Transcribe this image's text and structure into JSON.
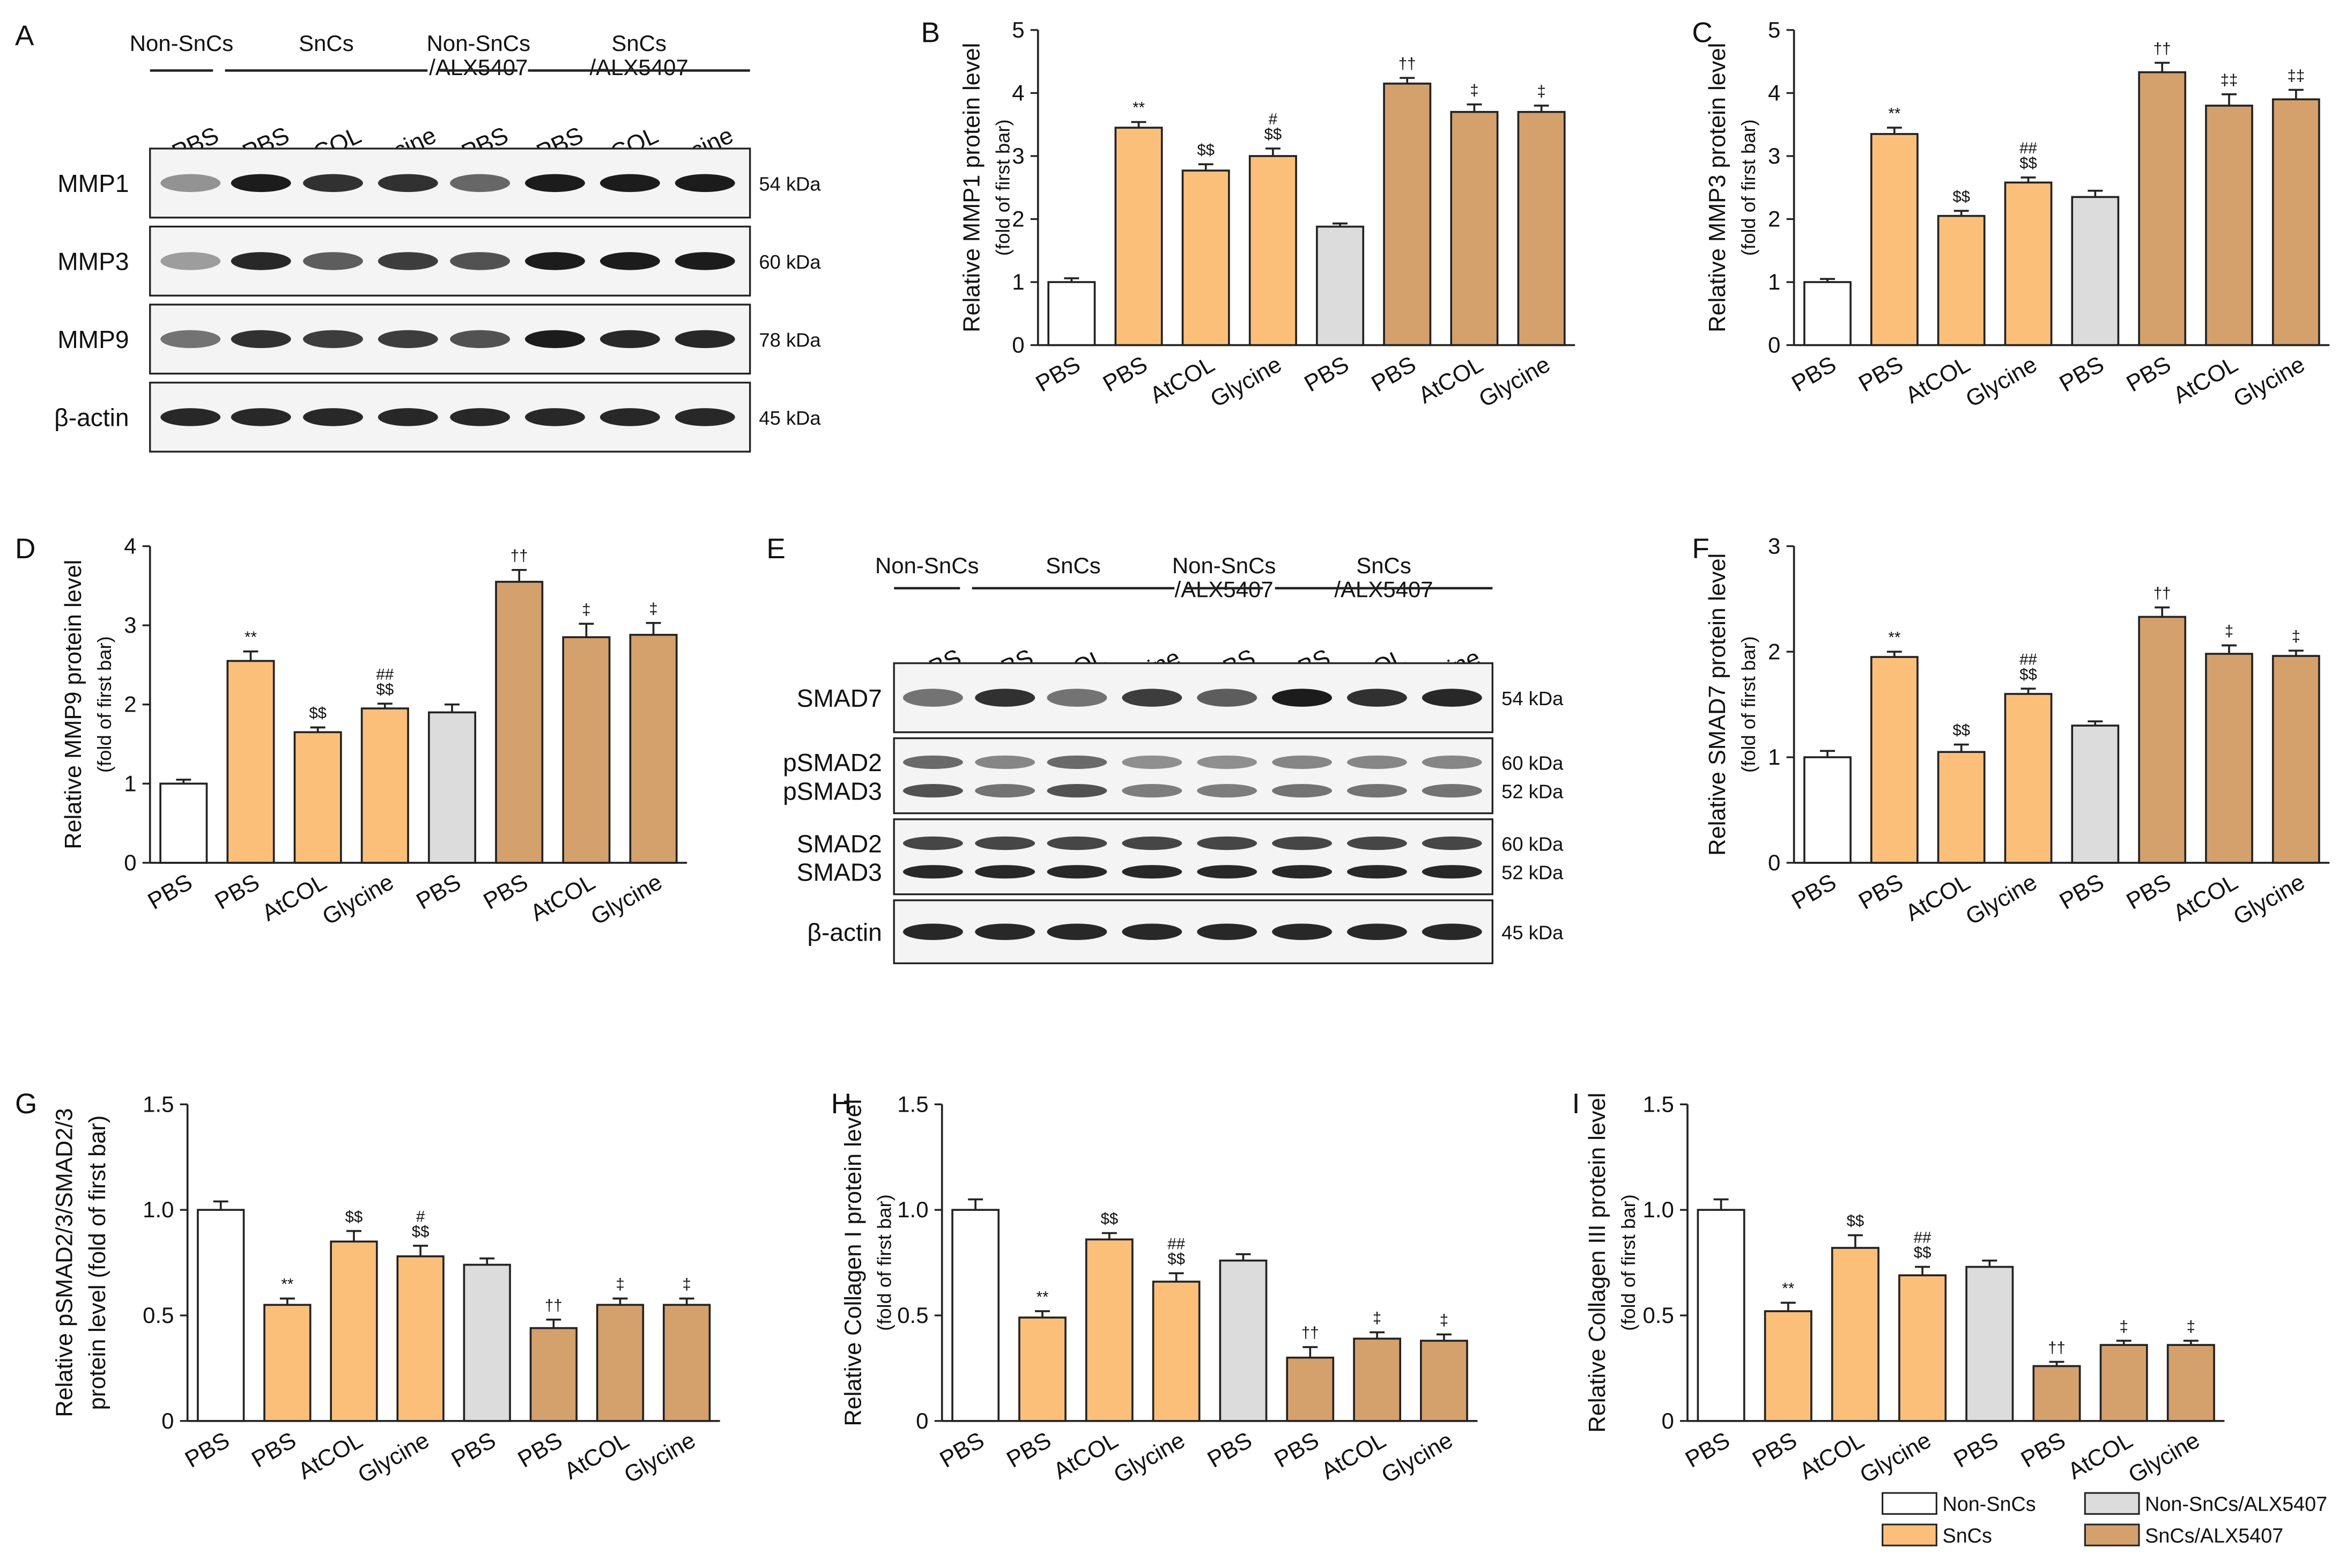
{
  "colors": {
    "non_sncs": "#ffffff",
    "sncs": "#fcbf7a",
    "non_sncs_alx": "#dcdcdc",
    "sncs_alx": "#d4a06c",
    "blot_bg": "#f4f4f4",
    "band": "#1c1c1c"
  },
  "labels": [
    "PBS",
    "PBS",
    "AtCOL",
    "Glycine",
    "PBS",
    "PBS",
    "AtCOL",
    "Glycine"
  ],
  "legend": {
    "items": [
      {
        "label": "Non-SnCs",
        "color": "#ffffff"
      },
      {
        "label": "Non-SnCs/ALX5407",
        "color": "#dcdcdc"
      },
      {
        "label": "SnCs",
        "color": "#fcbf7a"
      },
      {
        "label": "SnCs/ALX5407",
        "color": "#d4a06c"
      }
    ]
  },
  "blot_a": {
    "panel": "A",
    "groups": [
      {
        "line1": "Non-SnCs",
        "line2": ""
      },
      {
        "line1": "SnCs",
        "line2": ""
      },
      {
        "line1": "Non-SnCs",
        "line2": "/ALX5407"
      },
      {
        "line1": "SnCs",
        "line2": "/ALX5407"
      }
    ],
    "lanes": [
      "PBS",
      "PBS",
      "AtCOL",
      "Glycine",
      "PBS",
      "PBS",
      "AtCOL",
      "Glycine"
    ],
    "rows": [
      {
        "proteins": [
          "MMP1"
        ],
        "kda": [
          "54 kDa"
        ],
        "intensity": [
          0.45,
          1.0,
          0.9,
          0.9,
          0.65,
          1.0,
          1.0,
          1.0
        ]
      },
      {
        "proteins": [
          "MMP3"
        ],
        "kda": [
          "60 kDa"
        ],
        "intensity": [
          0.4,
          0.95,
          0.7,
          0.85,
          0.75,
          1.0,
          1.0,
          1.0
        ]
      },
      {
        "proteins": [
          "MMP9"
        ],
        "kda": [
          "78 kDa"
        ],
        "intensity": [
          0.6,
          0.9,
          0.85,
          0.85,
          0.75,
          1.0,
          0.95,
          0.95
        ]
      },
      {
        "proteins": [
          "β-actin"
        ],
        "kda": [
          "45 kDa"
        ],
        "intensity": [
          0.95,
          0.95,
          0.95,
          0.95,
          0.95,
          0.95,
          0.95,
          0.95
        ]
      }
    ]
  },
  "blot_e": {
    "panel": "E",
    "groups": [
      {
        "line1": "Non-SnCs",
        "line2": ""
      },
      {
        "line1": "SnCs",
        "line2": ""
      },
      {
        "line1": "Non-SnCs",
        "line2": "/ALX5407"
      },
      {
        "line1": "SnCs",
        "line2": "/ALX5407"
      }
    ],
    "lanes": [
      "PBS",
      "PBS",
      "AtCOL",
      "Glycine",
      "PBS",
      "PBS",
      "AtCOL",
      "Glycine"
    ],
    "rows": [
      {
        "proteins": [
          "SMAD7"
        ],
        "kda": [
          "54 kDa"
        ],
        "intensity": [
          0.6,
          0.9,
          0.6,
          0.85,
          0.7,
          1.0,
          0.9,
          0.95
        ]
      },
      {
        "proteins": [
          "pSMAD2",
          "pSMAD3"
        ],
        "kda": [
          "60 kDa",
          "52 kDa"
        ],
        "intensity": [
          0.75,
          0.6,
          0.75,
          0.55,
          0.55,
          0.6,
          0.6,
          0.6
        ]
      },
      {
        "proteins": [
          "SMAD2",
          "SMAD3"
        ],
        "kda": [
          "60 kDa",
          "52 kDa"
        ],
        "intensity": [
          0.95,
          0.95,
          0.95,
          0.95,
          0.95,
          0.95,
          0.95,
          0.95
        ]
      },
      {
        "proteins": [
          "β-actin"
        ],
        "kda": [
          "45 kDa"
        ],
        "intensity": [
          0.95,
          0.95,
          0.95,
          0.95,
          0.95,
          0.95,
          0.95,
          0.95
        ]
      }
    ]
  },
  "chart_data": [
    {
      "panel": "B",
      "type": "bar",
      "ylabel": "Relative MMP1 protein level",
      "ylabel2": "(fold of first bar)",
      "categories": [
        "PBS",
        "PBS",
        "AtCOL",
        "Glycine",
        "PBS",
        "PBS",
        "AtCOL",
        "Glycine"
      ],
      "values": [
        1.0,
        3.45,
        2.77,
        3.0,
        1.88,
        4.15,
        3.7,
        3.7
      ],
      "errors": [
        0.06,
        0.09,
        0.1,
        0.12,
        0.05,
        0.09,
        0.12,
        0.1
      ],
      "annotations": [
        "",
        "**",
        "$$",
        "#|$$",
        "",
        "††",
        "‡",
        "‡"
      ],
      "ylim": [
        0,
        5
      ],
      "yticks": [
        "0",
        "1",
        "2",
        "3",
        "4",
        "5"
      ]
    },
    {
      "panel": "C",
      "type": "bar",
      "ylabel": "Relative MMP3 protein level",
      "ylabel2": "(fold of first bar)",
      "categories": [
        "PBS",
        "PBS",
        "AtCOL",
        "Glycine",
        "PBS",
        "PBS",
        "AtCOL",
        "Glycine"
      ],
      "values": [
        1.0,
        3.35,
        2.05,
        2.58,
        2.35,
        4.33,
        3.8,
        3.9
      ],
      "errors": [
        0.05,
        0.1,
        0.08,
        0.08,
        0.1,
        0.15,
        0.18,
        0.15
      ],
      "annotations": [
        "",
        "**",
        "$$",
        "##|$$",
        "",
        "††",
        "‡‡",
        "‡‡"
      ],
      "ylim": [
        0,
        5
      ],
      "yticks": [
        "0",
        "1",
        "2",
        "3",
        "4",
        "5"
      ]
    },
    {
      "panel": "D",
      "type": "bar",
      "ylabel": "Relative MMP9 protein level",
      "ylabel2": "(fold of first bar)",
      "categories": [
        "PBS",
        "PBS",
        "AtCOL",
        "Glycine",
        "PBS",
        "PBS",
        "AtCOL",
        "Glycine"
      ],
      "values": [
        1.0,
        2.55,
        1.65,
        1.95,
        1.9,
        3.55,
        2.85,
        2.88
      ],
      "errors": [
        0.05,
        0.12,
        0.06,
        0.06,
        0.1,
        0.15,
        0.17,
        0.15
      ],
      "annotations": [
        "",
        "**",
        "$$",
        "##|$$",
        "",
        "††",
        "‡",
        "‡"
      ],
      "ylim": [
        0,
        4
      ],
      "yticks": [
        "0",
        "1",
        "2",
        "3",
        "4"
      ]
    },
    {
      "panel": "F",
      "type": "bar",
      "ylabel": "Relative SMAD7 protein level",
      "ylabel2": "(fold of first bar)",
      "categories": [
        "PBS",
        "PBS",
        "AtCOL",
        "Glycine",
        "PBS",
        "PBS",
        "AtCOL",
        "Glycine"
      ],
      "values": [
        1.0,
        1.95,
        1.05,
        1.6,
        1.3,
        2.33,
        1.98,
        1.96
      ],
      "errors": [
        0.06,
        0.05,
        0.07,
        0.05,
        0.04,
        0.09,
        0.08,
        0.05
      ],
      "annotations": [
        "",
        "**",
        "$$",
        "##|$$",
        "",
        "††",
        "‡",
        "‡"
      ],
      "ylim": [
        0,
        3
      ],
      "yticks": [
        "0",
        "1",
        "2",
        "3"
      ]
    },
    {
      "panel": "G",
      "type": "bar",
      "ylabel": "Relative pSMAD2/3/SMAD2/3",
      "ylabel2": "protein level (fold of first bar)",
      "categories": [
        "PBS",
        "PBS",
        "AtCOL",
        "Glycine",
        "PBS",
        "PBS",
        "AtCOL",
        "Glycine"
      ],
      "values": [
        1.0,
        0.55,
        0.85,
        0.78,
        0.74,
        0.44,
        0.55,
        0.55
      ],
      "errors": [
        0.04,
        0.03,
        0.05,
        0.05,
        0.03,
        0.04,
        0.03,
        0.03
      ],
      "annotations": [
        "",
        "**",
        "$$",
        "#|$$",
        "",
        "††",
        "‡",
        "‡"
      ],
      "ylim": [
        0,
        1.5
      ],
      "yticks": [
        "0",
        "0.5",
        "1.0",
        "1.5"
      ]
    },
    {
      "panel": "H",
      "type": "bar",
      "ylabel": "Relative Collagen I protein level",
      "ylabel2": "(fold of first bar)",
      "categories": [
        "PBS",
        "PBS",
        "AtCOL",
        "Glycine",
        "PBS",
        "PBS",
        "AtCOL",
        "Glycine"
      ],
      "values": [
        1.0,
        0.49,
        0.86,
        0.66,
        0.76,
        0.3,
        0.39,
        0.38
      ],
      "errors": [
        0.05,
        0.03,
        0.03,
        0.04,
        0.03,
        0.05,
        0.03,
        0.03
      ],
      "annotations": [
        "",
        "**",
        "$$",
        "##|$$",
        "",
        "††",
        "‡",
        "‡"
      ],
      "ylim": [
        0,
        1.5
      ],
      "yticks": [
        "0",
        "0.5",
        "1.0",
        "1.5"
      ]
    },
    {
      "panel": "I",
      "type": "bar",
      "ylabel": "Relative Collagen III protein level",
      "ylabel2": "(fold of first bar)",
      "categories": [
        "PBS",
        "PBS",
        "AtCOL",
        "Glycine",
        "PBS",
        "PBS",
        "AtCOL",
        "Glycine"
      ],
      "values": [
        1.0,
        0.52,
        0.82,
        0.69,
        0.73,
        0.26,
        0.36,
        0.36
      ],
      "errors": [
        0.05,
        0.04,
        0.06,
        0.04,
        0.03,
        0.02,
        0.02,
        0.02
      ],
      "annotations": [
        "",
        "**",
        "$$",
        "##|$$",
        "",
        "††",
        "‡",
        "‡"
      ],
      "ylim": [
        0,
        1.5
      ],
      "yticks": [
        "0",
        "0.5",
        "1.0",
        "1.5"
      ]
    }
  ]
}
